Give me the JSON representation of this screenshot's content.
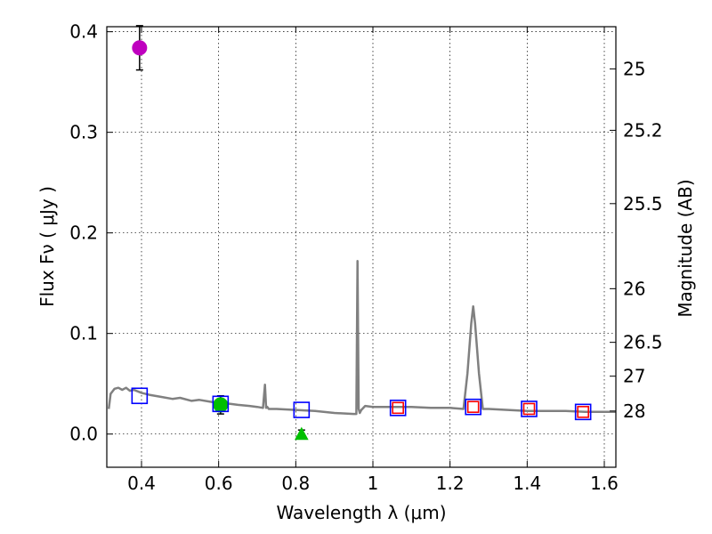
{
  "chart_data": {
    "type": "scatter",
    "xlabel": "Wavelength  λ (μm)",
    "ylabel": "Flux  Fν  ( μJy )",
    "ylabel_right": "Magnitude (AB)",
    "xlim": [
      0.31,
      1.63
    ],
    "ylim": [
      -0.033,
      0.405
    ],
    "grid": true,
    "x_ticks": [
      {
        "v": 0.4,
        "label": "0.4"
      },
      {
        "v": 0.6,
        "label": "0.6"
      },
      {
        "v": 0.8,
        "label": "0.8"
      },
      {
        "v": 1.0,
        "label": "1"
      },
      {
        "v": 1.2,
        "label": "1.2"
      },
      {
        "v": 1.4,
        "label": "1.4"
      },
      {
        "v": 1.6,
        "label": "1.6"
      }
    ],
    "y_ticks": [
      {
        "v": 0.0,
        "label": "0.0"
      },
      {
        "v": 0.1,
        "label": "0.1"
      },
      {
        "v": 0.2,
        "label": "0.2"
      },
      {
        "v": 0.3,
        "label": "0.3"
      },
      {
        "v": 0.4,
        "label": "0.4"
      }
    ],
    "mag_ticks": [
      {
        "mag": 25.0,
        "label": "25"
      },
      {
        "mag": 25.2,
        "label": "25.2"
      },
      {
        "mag": 25.5,
        "label": "25.5"
      },
      {
        "mag": 26.0,
        "label": "26"
      },
      {
        "mag": 26.5,
        "label": "26.5"
      },
      {
        "mag": 27.0,
        "label": "27"
      },
      {
        "mag": 28.0,
        "label": "28"
      }
    ],
    "model_sed": {
      "name": "model spectrum",
      "color": "#808080",
      "x": [
        0.315,
        0.32,
        0.33,
        0.34,
        0.35,
        0.36,
        0.37,
        0.38,
        0.4,
        0.42,
        0.45,
        0.48,
        0.5,
        0.53,
        0.55,
        0.58,
        0.6,
        0.63,
        0.65,
        0.68,
        0.7,
        0.715,
        0.72,
        0.723,
        0.726,
        0.73,
        0.75,
        0.8,
        0.85,
        0.9,
        0.95,
        0.957,
        0.96,
        0.963,
        0.966,
        0.97,
        0.98,
        1.0,
        1.05,
        1.1,
        1.15,
        1.2,
        1.235,
        1.245,
        1.255,
        1.26,
        1.265,
        1.275,
        1.285,
        1.3,
        1.35,
        1.4,
        1.45,
        1.5,
        1.55,
        1.6,
        1.63
      ],
      "y": [
        0.025,
        0.04,
        0.045,
        0.046,
        0.044,
        0.046,
        0.043,
        0.044,
        0.041,
        0.039,
        0.037,
        0.035,
        0.036,
        0.033,
        0.034,
        0.032,
        0.031,
        0.03,
        0.029,
        0.028,
        0.027,
        0.026,
        0.049,
        0.026,
        0.027,
        0.025,
        0.025,
        0.024,
        0.023,
        0.021,
        0.02,
        0.02,
        0.172,
        0.025,
        0.021,
        0.024,
        0.028,
        0.027,
        0.027,
        0.027,
        0.026,
        0.026,
        0.025,
        0.06,
        0.11,
        0.127,
        0.11,
        0.06,
        0.025,
        0.025,
        0.024,
        0.023,
        0.023,
        0.023,
        0.022,
        0.022,
        0.022
      ]
    },
    "series": [
      {
        "name": "observed (magenta)",
        "marker": "circle",
        "color": "#bf00bf",
        "points": [
          {
            "x": 0.395,
            "y": 0.384,
            "err": 0.022
          }
        ]
      },
      {
        "name": "observed (green)",
        "marker": "circle",
        "color": "#00bf00",
        "points": [
          {
            "x": 0.605,
            "y": 0.029,
            "err": 0.009
          }
        ]
      },
      {
        "name": "upper limit",
        "marker": "triangle",
        "color": "#00bf00",
        "points": [
          {
            "x": 0.815,
            "y": 0.0,
            "err": 0.004
          }
        ]
      },
      {
        "name": "model photometry",
        "marker": "open-square",
        "color": "#0000ff",
        "points": [
          {
            "x": 0.395,
            "y": 0.038
          },
          {
            "x": 0.605,
            "y": 0.03
          },
          {
            "x": 0.815,
            "y": 0.024
          },
          {
            "x": 1.065,
            "y": 0.026
          },
          {
            "x": 1.26,
            "y": 0.027
          },
          {
            "x": 1.405,
            "y": 0.025
          },
          {
            "x": 1.545,
            "y": 0.022
          }
        ]
      },
      {
        "name": "NIR photometry",
        "marker": "open-square",
        "color": "#ff0000",
        "points": [
          {
            "x": 1.065,
            "y": 0.026
          },
          {
            "x": 1.26,
            "y": 0.027
          },
          {
            "x": 1.405,
            "y": 0.025
          },
          {
            "x": 1.545,
            "y": 0.022
          }
        ]
      }
    ]
  }
}
